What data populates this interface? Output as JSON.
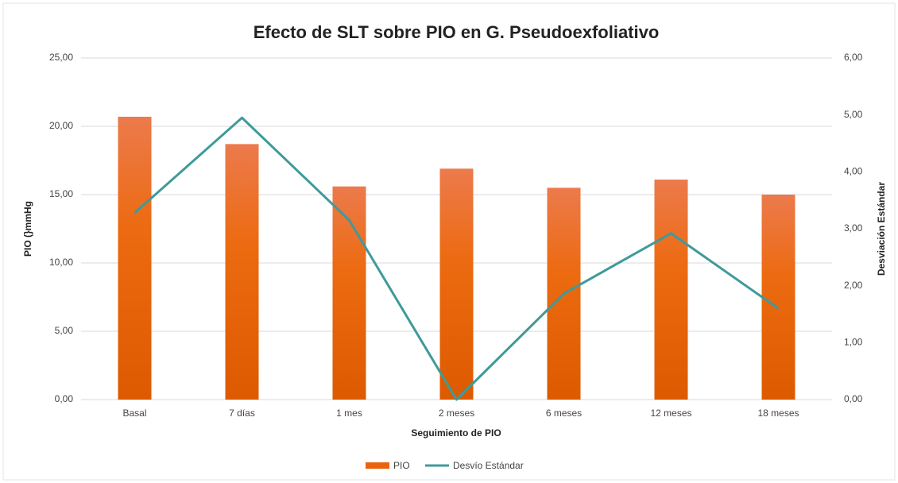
{
  "chart_data": {
    "type": "bar_line",
    "title": "Efecto de SLT sobre PIO en G. Pseudoexfoliativo",
    "x_label": "Seguimiento de PIO",
    "y_label": "PIO (}mmHg",
    "y2_label": "Desviación Estándar",
    "categories": [
      "Basal",
      "7 días",
      "1 mes",
      "2 meses",
      "6 meses",
      "12 meses",
      "18 meses"
    ],
    "series": [
      {
        "name": "PIO",
        "color": "#e8620f",
        "type": "bar",
        "values": [
          20.7,
          18.7,
          15.6,
          16.9,
          15.5,
          16.1,
          15.0
        ]
      },
      {
        "name": "Desvío Estándar",
        "color": "#3f9a9a",
        "type": "line",
        "axis": "y2",
        "values": [
          3.28,
          4.95,
          3.15,
          0,
          1.86,
          2.92,
          1.6
        ]
      }
    ],
    "ylim": [
      0,
      25
    ],
    "yticks": [
      {
        "value": 0,
        "label": "0,00"
      },
      {
        "value": 5,
        "label": "5,00"
      },
      {
        "value": 10,
        "label": "10,00"
      },
      {
        "value": 15,
        "label": "15,00"
      },
      {
        "value": 20,
        "label": "20,00"
      },
      {
        "value": 25,
        "label": "25,00"
      }
    ],
    "y2lim": [
      0,
      6
    ],
    "y2ticks": [
      {
        "value": 0,
        "label": "0,00"
      },
      {
        "value": 1,
        "label": "1,00"
      },
      {
        "value": 2,
        "label": "2,00"
      },
      {
        "value": 3,
        "label": "3,00"
      },
      {
        "value": 4,
        "label": "4,00"
      },
      {
        "value": 5,
        "label": "5,00"
      },
      {
        "value": 6,
        "label": "6,00"
      }
    ],
    "grid": true,
    "legend": "bottom"
  }
}
